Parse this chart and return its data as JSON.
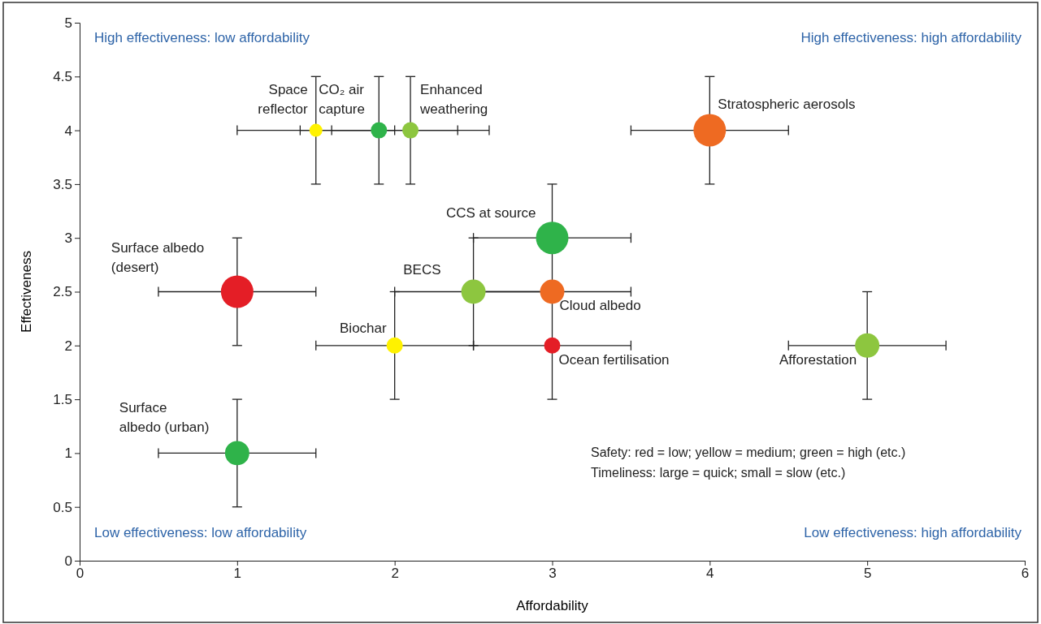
{
  "chart_data": {
    "type": "scatter",
    "xlabel": "Affordability",
    "ylabel": "Effectiveness",
    "xlim": [
      0,
      6
    ],
    "xticks": [
      0,
      1,
      2,
      3,
      4,
      5,
      6
    ],
    "ylim": [
      0,
      5
    ],
    "yticks": [
      0,
      0.5,
      1,
      1.5,
      2,
      2.5,
      3,
      3.5,
      4,
      4.5,
      5
    ],
    "grid": false,
    "marker": "circle",
    "series": [
      {
        "x": [
          1.5,
          1.9,
          2.1,
          4,
          3,
          2.5,
          3,
          2,
          3,
          5,
          1,
          1
        ],
        "values": [
          4,
          4,
          4,
          4,
          3,
          2.5,
          2.5,
          2,
          2,
          2,
          2.5,
          1
        ],
        "sizes": [
          0.16,
          0.25,
          0.25,
          1,
          1,
          0.56,
          0.56,
          0.25,
          0.25,
          0.56,
          1,
          0.56
        ],
        "colors": [
          "#fff200",
          "#2fb34a",
          "#8dc63f",
          "#ee6a22",
          "#2fb34a",
          "#8dc63f",
          "#ee6a22",
          "#fff200",
          "#e41e26",
          "#8dc63f",
          "#e41e26",
          "#2fb34a"
        ],
        "errors": [
          0.5,
          0.5,
          0.5,
          0.5,
          0.5,
          0.5,
          null,
          0.5,
          0.5,
          0.5,
          0.5,
          0.5
        ],
        "xerrors": [
          0.5,
          0.5,
          0.5,
          0.5,
          0.5,
          0.5,
          0.5,
          0.5,
          0.5,
          0.5,
          0.5,
          0.5
        ]
      }
    ],
    "annotations": [
      {
        "text": "Space\nreflector",
        "x": 1.5,
        "y": 4
      },
      {
        "text": "CO₂ air\ncapture",
        "x": 1.9,
        "y": 4
      },
      {
        "text": "Enhanced\nweathering",
        "x": 2.1,
        "y": 4
      },
      {
        "text": "Stratospheric aerosols",
        "x": 4,
        "y": 4
      },
      {
        "text": "CCS at source",
        "x": 3,
        "y": 3
      },
      {
        "text": "BECS",
        "x": 2.5,
        "y": 2.5
      },
      {
        "text": "Cloud albedo",
        "x": 3,
        "y": 2.5
      },
      {
        "text": "Biochar",
        "x": 2,
        "y": 2
      },
      {
        "text": "Ocean fertilisation",
        "x": 3,
        "y": 2
      },
      {
        "text": "Afforestation",
        "x": 5,
        "y": 2
      },
      {
        "text": "Surface albedo\n(desert)",
        "x": 1,
        "y": 2.5
      },
      {
        "text": "Surface\nalbedo (urban)",
        "x": 1,
        "y": 1
      },
      "High effectiveness: low affordability",
      "High effectiveness: high affordability",
      "Low effectiveness: low affordability",
      "Low effectiveness: high affordability",
      "Safety: red = low; yellow = medium; green = high (etc.)\nTimeliness: large = quick; small = slow (etc.)"
    ]
  }
}
